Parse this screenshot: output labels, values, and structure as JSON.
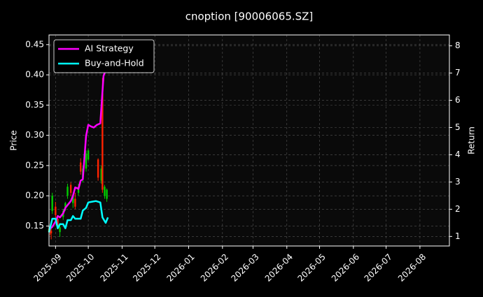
{
  "chart_data": {
    "type": "line",
    "title": "cnoption [90006065.SZ]",
    "xlabel": "",
    "ylabel": "Price",
    "y2label": "Return",
    "xlim": [
      "2025-08-26",
      "2026-08-28"
    ],
    "ylim": [
      0.117,
      0.466
    ],
    "y2lim": [
      0.65,
      8.4
    ],
    "x_ticks": [
      "2025-09",
      "2025-10",
      "2025-11",
      "2025-12",
      "2026-01",
      "2026-02",
      "2026-03",
      "2026-04",
      "2026-05",
      "2026-06",
      "2026-07",
      "2026-08"
    ],
    "y_ticks": [
      "0.15",
      "0.20",
      "0.25",
      "0.30",
      "0.35",
      "0.40",
      "0.45"
    ],
    "y2_ticks": [
      "1",
      "2",
      "3",
      "4",
      "5",
      "6",
      "7",
      "8"
    ],
    "grid": true,
    "legend_position": "upper-left",
    "colors": {
      "background": "#000000",
      "plot_background": "#0a0a0a",
      "grid": "#555555",
      "ai_strategy": "#ff00ff",
      "buy_and_hold": "#00ffff",
      "candle_up": "#00cc00",
      "candle_down": "#ff2200"
    },
    "series": [
      {
        "name": "AI Strategy",
        "axis": "right",
        "points": [
          [
            "2025-08-26",
            1.25
          ],
          [
            "2025-08-29",
            1.35
          ],
          [
            "2025-09-01",
            1.55
          ],
          [
            "2025-09-03",
            1.75
          ],
          [
            "2025-09-05",
            1.7
          ],
          [
            "2025-09-08",
            1.85
          ],
          [
            "2025-09-10",
            2.05
          ],
          [
            "2025-09-12",
            2.15
          ],
          [
            "2025-09-15",
            2.3
          ],
          [
            "2025-09-17",
            2.5
          ],
          [
            "2025-09-19",
            2.8
          ],
          [
            "2025-09-22",
            2.75
          ],
          [
            "2025-09-24",
            3.05
          ],
          [
            "2025-09-26",
            3.1
          ],
          [
            "2025-09-29",
            4.7
          ],
          [
            "2025-10-01",
            5.1
          ],
          [
            "2025-10-03",
            5.05
          ],
          [
            "2025-10-06",
            5.0
          ],
          [
            "2025-10-09",
            5.1
          ],
          [
            "2025-10-12",
            5.15
          ],
          [
            "2025-10-15",
            6.9
          ],
          [
            "2025-10-17",
            7.1
          ],
          [
            "2025-10-19",
            7.6
          ]
        ]
      },
      {
        "name": "Buy-and-Hold",
        "axis": "right",
        "points": [
          [
            "2025-08-26",
            1.15
          ],
          [
            "2025-08-29",
            1.65
          ],
          [
            "2025-09-01",
            1.65
          ],
          [
            "2025-09-03",
            1.3
          ],
          [
            "2025-09-05",
            1.45
          ],
          [
            "2025-09-08",
            1.45
          ],
          [
            "2025-09-10",
            1.3
          ],
          [
            "2025-09-12",
            1.6
          ],
          [
            "2025-09-15",
            1.6
          ],
          [
            "2025-09-17",
            1.75
          ],
          [
            "2025-09-19",
            1.65
          ],
          [
            "2025-09-22",
            1.65
          ],
          [
            "2025-09-24",
            1.65
          ],
          [
            "2025-09-26",
            1.95
          ],
          [
            "2025-09-29",
            2.05
          ],
          [
            "2025-10-01",
            2.25
          ],
          [
            "2025-10-05",
            2.28
          ],
          [
            "2025-10-08",
            2.3
          ],
          [
            "2025-10-12",
            2.25
          ],
          [
            "2025-10-14",
            1.7
          ],
          [
            "2025-10-17",
            1.5
          ],
          [
            "2025-10-19",
            1.7
          ]
        ]
      }
    ],
    "candles": [
      [
        "2025-08-26",
        0.14,
        0.145,
        0.128,
        0.152
      ],
      [
        "2025-08-27",
        0.145,
        0.142,
        0.135,
        0.15
      ],
      [
        "2025-08-28",
        0.142,
        0.138,
        0.128,
        0.148
      ],
      [
        "2025-08-29",
        0.175,
        0.2,
        0.17,
        0.205
      ],
      [
        "2025-09-01",
        0.182,
        0.168,
        0.16,
        0.19
      ],
      [
        "2025-09-03",
        0.162,
        0.15,
        0.145,
        0.165
      ],
      [
        "2025-09-05",
        0.14,
        0.148,
        0.132,
        0.155
      ],
      [
        "2025-09-08",
        0.165,
        0.175,
        0.16,
        0.178
      ],
      [
        "2025-09-10",
        0.18,
        0.188,
        0.175,
        0.19
      ],
      [
        "2025-09-12",
        0.2,
        0.215,
        0.195,
        0.22
      ],
      [
        "2025-09-15",
        0.218,
        0.205,
        0.2,
        0.222
      ],
      [
        "2025-09-17",
        0.188,
        0.2,
        0.18,
        0.205
      ],
      [
        "2025-09-19",
        0.195,
        0.182,
        0.178,
        0.205
      ],
      [
        "2025-09-22",
        0.205,
        0.215,
        0.2,
        0.22
      ],
      [
        "2025-09-24",
        0.255,
        0.24,
        0.235,
        0.262
      ],
      [
        "2025-09-26",
        0.23,
        0.245,
        0.222,
        0.25
      ],
      [
        "2025-09-29",
        0.245,
        0.27,
        0.24,
        0.275
      ],
      [
        "2025-10-01",
        0.26,
        0.275,
        0.258,
        0.278
      ],
      [
        "2025-10-10",
        0.26,
        0.23,
        0.225,
        0.262
      ],
      [
        "2025-10-13",
        0.225,
        0.245,
        0.22,
        0.25
      ],
      [
        "2025-10-14",
        0.37,
        0.21,
        0.205,
        0.395
      ],
      [
        "2025-10-16",
        0.2,
        0.215,
        0.195,
        0.218
      ],
      [
        "2025-10-18",
        0.195,
        0.21,
        0.19,
        0.212
      ]
    ]
  }
}
